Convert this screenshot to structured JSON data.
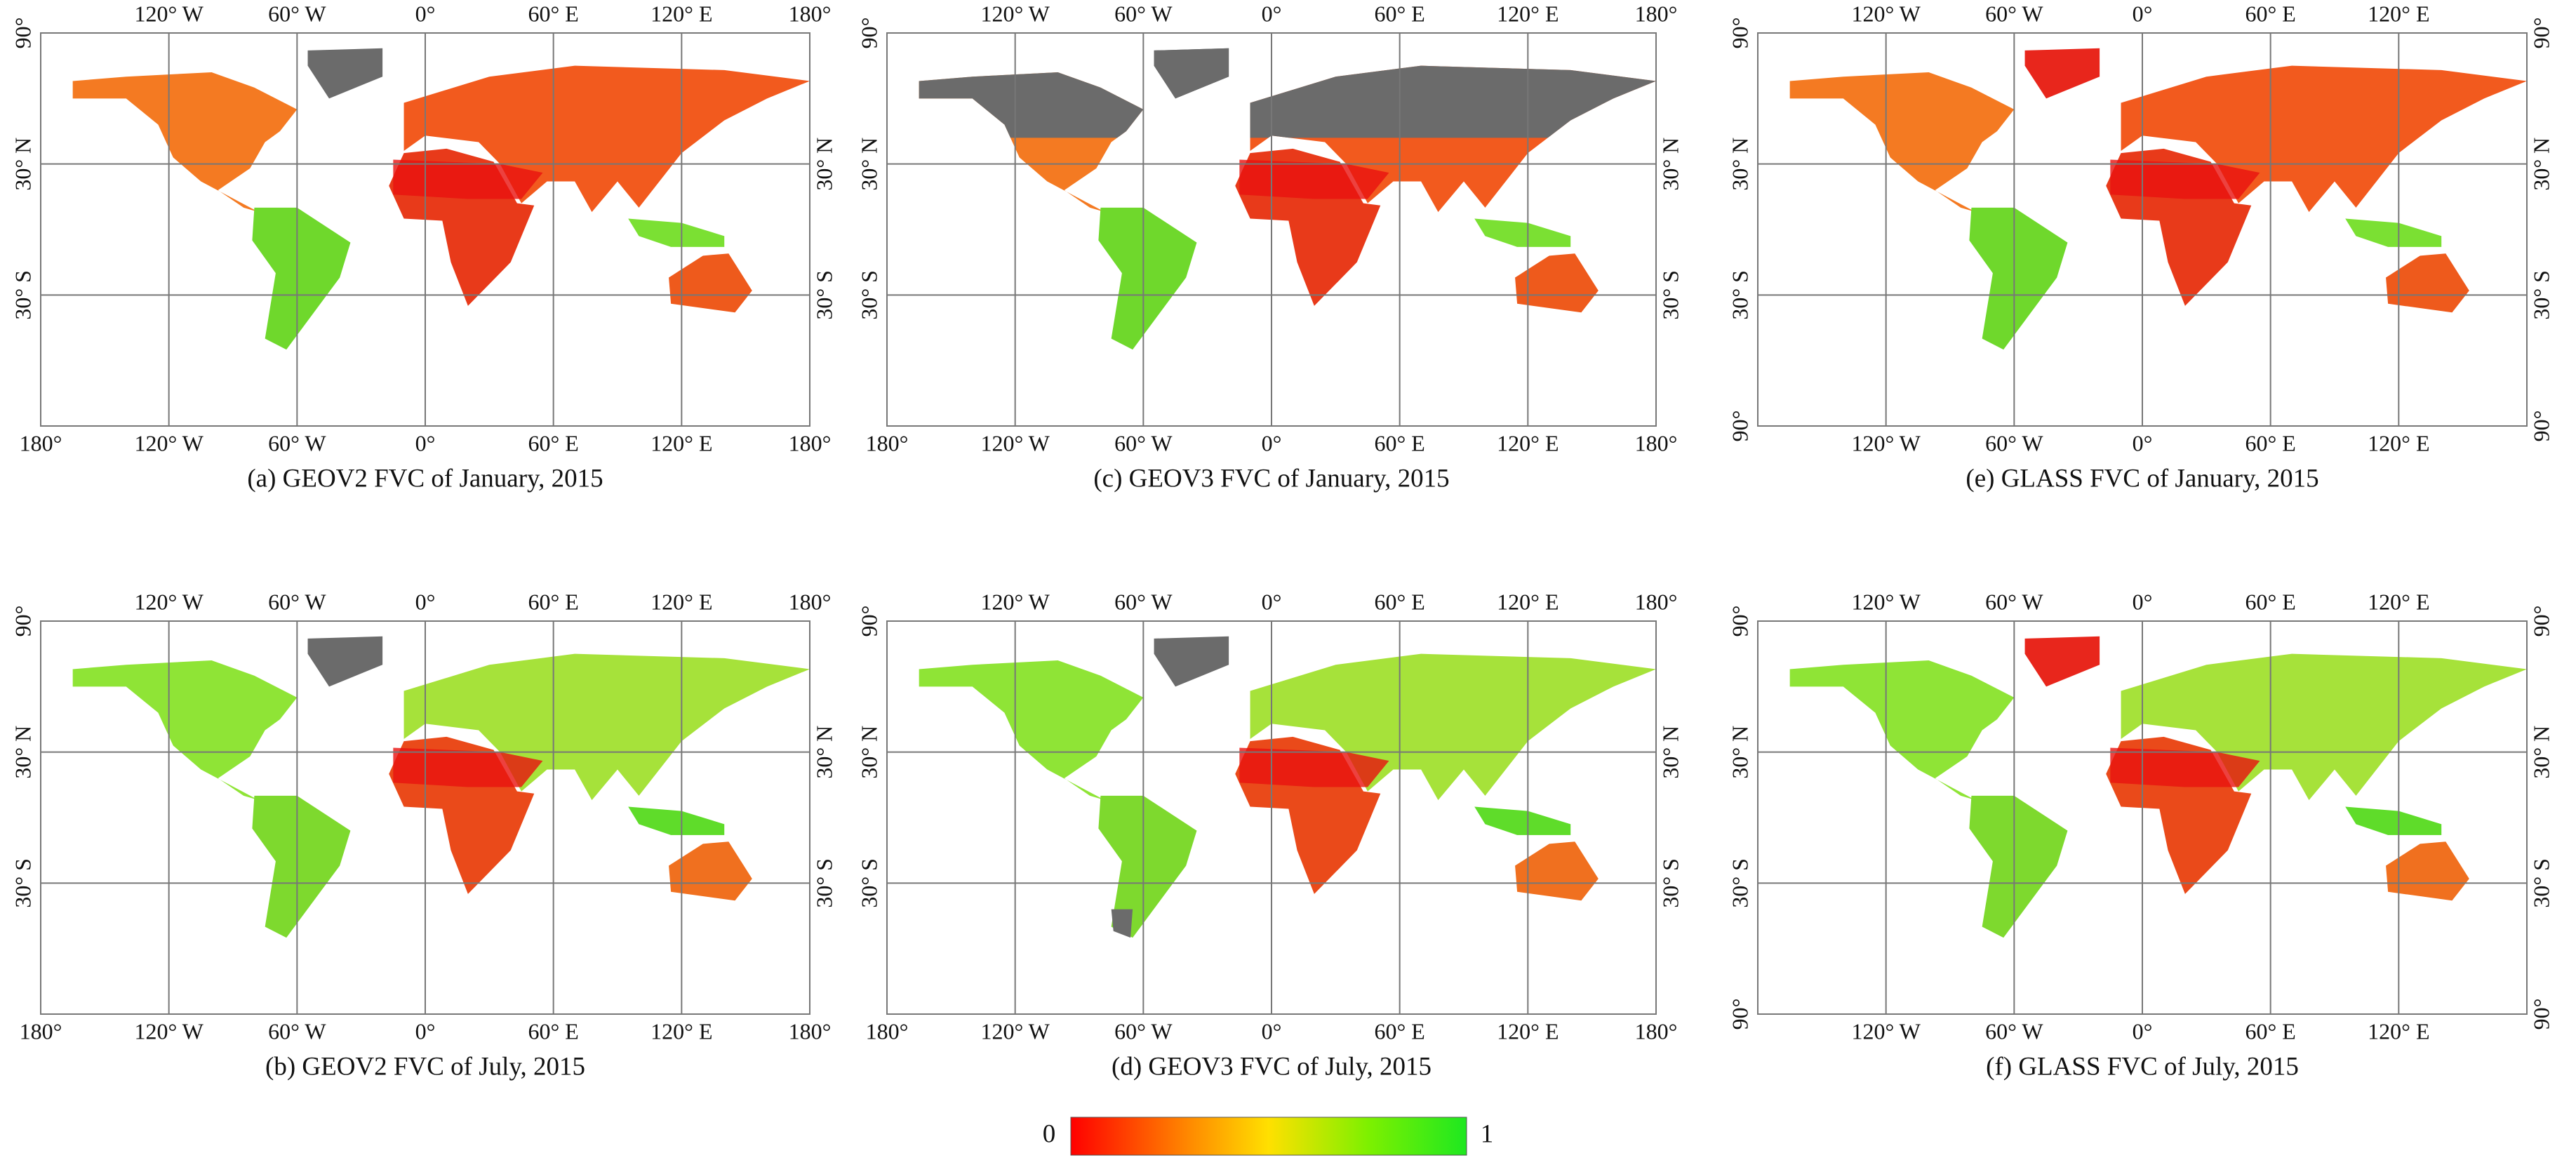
{
  "panels": [
    {
      "caption": "(a) GEOV2 FVC of January, 2015",
      "top_labels": [
        "120° W",
        "60° W",
        "0°",
        "60° E",
        "120° E",
        "180°"
      ],
      "bottom_labels": [
        "180°",
        "120° W",
        "60° W",
        "0°",
        "60° E",
        "120° E",
        "180°"
      ],
      "left_labels": [
        "90°",
        "30° N",
        "30° S"
      ],
      "right_labels": [
        "30° N",
        "30° S"
      ]
    },
    {
      "caption": "(c) GEOV3 FVC of January, 2015",
      "top_labels": [
        "120° W",
        "60° W",
        "0°",
        "60° E",
        "120° E",
        "180°"
      ],
      "bottom_labels": [
        "180°",
        "120° W",
        "60° W",
        "0°",
        "60° E",
        "120° E",
        "180°"
      ],
      "left_labels": [
        "90°",
        "30° N",
        "30° S"
      ],
      "right_labels": [
        "30° N",
        "30° S"
      ]
    },
    {
      "caption": "(e) GLASS FVC of January, 2015",
      "top_labels": [
        "120° W",
        "60° W",
        "0°",
        "60° E",
        "120° E"
      ],
      "bottom_labels": [
        "120° W",
        "60° W",
        "0°",
        "60° E",
        "120° E"
      ],
      "left_labels": [
        "90°",
        "30° N",
        "30° S",
        "90°"
      ],
      "right_labels": [
        "90°",
        "30° N",
        "30° S",
        "90°"
      ]
    },
    {
      "caption": "(b) GEOV2 FVC of July, 2015",
      "top_labels": [
        "120° W",
        "60° W",
        "0°",
        "60° E",
        "120° E",
        "180°"
      ],
      "bottom_labels": [
        "180°",
        "120° W",
        "60° W",
        "0°",
        "60° E",
        "120° E",
        "180°"
      ],
      "left_labels": [
        "90°",
        "30° N",
        "30° S"
      ],
      "right_labels": [
        "30° N",
        "30° S"
      ]
    },
    {
      "caption": "(d) GEOV3 FVC of July, 2015",
      "top_labels": [
        "120° W",
        "60° W",
        "0°",
        "60° E",
        "120° E",
        "180°"
      ],
      "bottom_labels": [
        "180°",
        "120° W",
        "60° W",
        "0°",
        "60° E",
        "120° E",
        "180°"
      ],
      "left_labels": [
        "90°",
        "30° N",
        "30° S"
      ],
      "right_labels": [
        "30° N",
        "30° S"
      ]
    },
    {
      "caption": "(f) GLASS FVC of July, 2015",
      "top_labels": [
        "120° W",
        "60° W",
        "0°",
        "60° E",
        "120° E"
      ],
      "bottom_labels": [
        "120° W",
        "60° W",
        "0°",
        "60° E",
        "120° E"
      ],
      "left_labels": [
        "90°",
        "30° N",
        "30° S",
        "90°"
      ],
      "right_labels": [
        "90°",
        "30° N",
        "30° S",
        "90°"
      ]
    }
  ],
  "colorbar": {
    "min": 0,
    "max": 1
  }
}
